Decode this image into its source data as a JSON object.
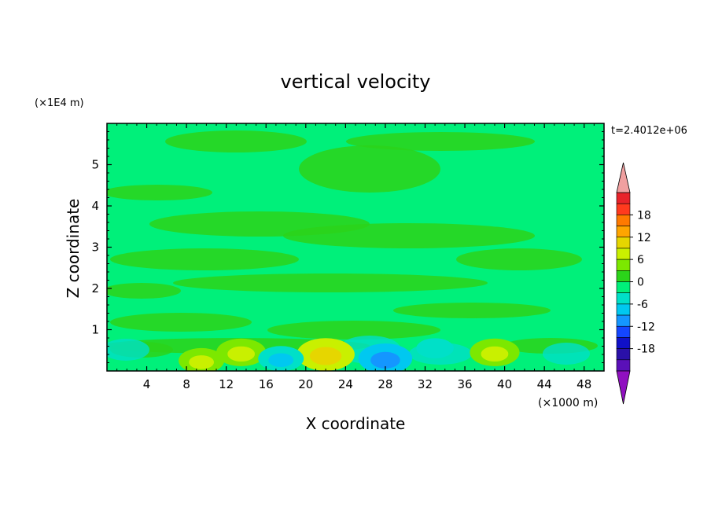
{
  "chart_data": {
    "type": "heatmap",
    "title": "vertical velocity",
    "xlabel": "X coordinate",
    "ylabel": "Z coordinate",
    "x_unit": "(×1000 m)",
    "y_unit": "(×1E4 m)",
    "time_label": "t=2.4012e+06",
    "xlim": [
      0,
      50
    ],
    "ylim": [
      0,
      6
    ],
    "x_ticks": [
      4,
      8,
      12,
      16,
      20,
      24,
      28,
      32,
      36,
      40,
      44,
      48
    ],
    "y_ticks": [
      1,
      2,
      3,
      4,
      5
    ],
    "grid": false,
    "legend_placement": "right",
    "colorbar": {
      "levels": [
        -21,
        -18,
        -15,
        -12,
        -9,
        -6,
        -3,
        0,
        3,
        6,
        9,
        12,
        15,
        18,
        21
      ],
      "tick_labels": [
        "18",
        "12",
        "6",
        "0",
        "-6",
        "-12",
        "-18"
      ],
      "tick_values": [
        18,
        12,
        6,
        0,
        -6,
        -12,
        -18
      ],
      "colors_high_to_low": [
        "#e8232a",
        "#ff3a1e",
        "#ff7a00",
        "#ffa500",
        "#e6d600",
        "#c9f000",
        "#7ce800",
        "#2bd41a",
        "#00f07a",
        "#00e0c8",
        "#00c8f0",
        "#1496ff",
        "#1446ff",
        "#1010c8",
        "#2a10a8",
        "#5a10b8"
      ],
      "over_color": "#f0a0a0",
      "under_color": "#9010c0"
    },
    "background_color": "#00f07a",
    "features": [
      {
        "x": 9.5,
        "z": 0.25,
        "value": 5
      },
      {
        "x": 13.5,
        "z": 0.45,
        "value": 6
      },
      {
        "x": 22,
        "z": 0.4,
        "value": 8
      },
      {
        "x": 39,
        "z": 0.45,
        "value": 6
      },
      {
        "x": 17.5,
        "z": 0.3,
        "value": -5
      },
      {
        "x": 28,
        "z": 0.3,
        "value": -7
      },
      {
        "x": 33,
        "z": 0.55,
        "value": -3
      }
    ]
  }
}
